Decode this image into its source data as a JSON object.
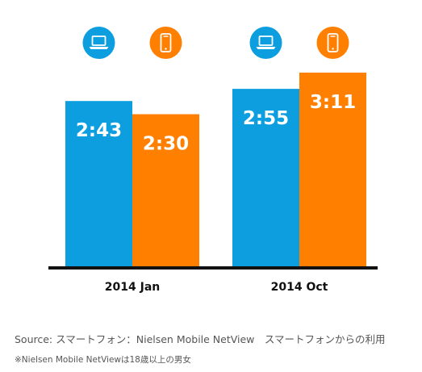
{
  "chart_data": {
    "type": "bar",
    "categories": [
      "2014 Jan",
      "2014 Oct"
    ],
    "series": [
      {
        "icon": "laptop-icon",
        "color": "#0d9ee0",
        "values": [
          "2:43",
          "2:55"
        ],
        "minutes": [
          163,
          175
        ]
      },
      {
        "icon": "smartphone-icon",
        "color": "#ff7f00",
        "values": [
          "2:30",
          "3:11"
        ],
        "minutes": [
          150,
          191
        ]
      }
    ],
    "ylim_minutes": [
      0,
      191
    ]
  },
  "footer": {
    "source": "Source:  スマートフォン：Nielsen Mobile NetView　スマートフォンからの利用",
    "note": "※Nielsen Mobile NetViewは18歳以上の男女"
  }
}
